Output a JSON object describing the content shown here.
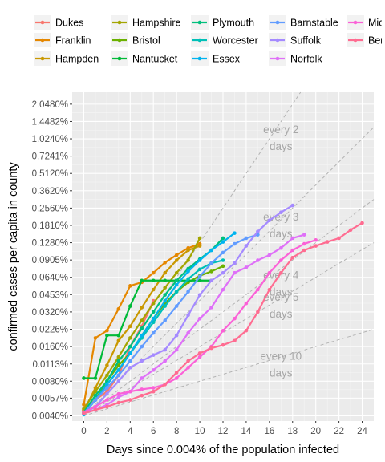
{
  "chart_data": {
    "type": "line",
    "xlabel": "Days since 0.004% of the population infected",
    "ylabel": "confirmed cases per capita in county",
    "y_scale": "log2",
    "xlim": [
      -1,
      25
    ],
    "ylim_percent": [
      0.0036,
      2.6
    ],
    "x_ticks": [
      0,
      2,
      4,
      6,
      8,
      10,
      12,
      14,
      16,
      18,
      20,
      22,
      24
    ],
    "x_tick_labels": [
      "0",
      "2",
      "4",
      "6",
      "8",
      "10",
      "12",
      "14",
      "16",
      "18",
      "20",
      "22",
      "24"
    ],
    "y_ticks": [
      0.004,
      0.0057,
      0.008,
      0.0113,
      0.016,
      0.0226,
      0.032,
      0.0453,
      0.064,
      0.0905,
      0.128,
      0.181,
      0.256,
      0.362,
      0.512,
      0.7241,
      1.024,
      1.4482,
      2.048
    ],
    "y_tick_labels": [
      "0.0040%",
      "0.0057%",
      "0.0080%",
      "0.0113%",
      "0.0160%",
      "0.0226%",
      "0.0320%",
      "0.0453%",
      "0.0640%",
      "0.0905%",
      "0.1280%",
      "0.1810%",
      "0.2560%",
      "0.3620%",
      "0.5120%",
      "0.7241%",
      "1.0240%",
      "1.4482%",
      "2.0480%"
    ],
    "grid": true,
    "legend_position": "top",
    "reference_lines": [
      {
        "label_line1": "every 2",
        "label_line2": "days",
        "doubling_days": 2,
        "label_x": 17,
        "label_y": 1.15
      },
      {
        "label_line1": "every 3",
        "label_line2": "days",
        "doubling_days": 3,
        "label_x": 17,
        "label_y": 0.2
      },
      {
        "label_line1": "every 4",
        "label_line2": "days",
        "doubling_days": 4,
        "label_x": 17,
        "label_y": 0.062
      },
      {
        "label_line1": "every 5",
        "label_line2": "days",
        "doubling_days": 5,
        "label_x": 17,
        "label_y": 0.04
      },
      {
        "label_line1": "every 10",
        "label_line2": "days",
        "doubling_days": 10,
        "label_x": 17,
        "label_y": 0.0123
      }
    ],
    "series": [
      {
        "name": "Dukes",
        "color": "#F8766D",
        "x": [
          0,
          1,
          2,
          3,
          4,
          5,
          6
        ],
        "y": [
          0.0045,
          0.0055,
          0.0065,
          0.009,
          0.016,
          0.024,
          0.04
        ]
      },
      {
        "name": "Franklin",
        "color": "#E58700",
        "x": [
          0,
          1,
          2,
          3,
          4,
          5,
          6,
          7,
          8,
          9,
          10
        ],
        "y": [
          0.005,
          0.019,
          0.022,
          0.034,
          0.054,
          0.058,
          0.07,
          0.086,
          0.1,
          0.115,
          0.125
        ]
      },
      {
        "name": "Hampden",
        "color": "#C99800",
        "x": [
          0,
          1,
          2,
          3,
          4,
          5,
          6,
          7,
          8,
          9,
          10
        ],
        "y": [
          0.0044,
          0.007,
          0.011,
          0.018,
          0.024,
          0.035,
          0.05,
          0.07,
          0.09,
          0.11,
          0.12
        ]
      },
      {
        "name": "Hampshire",
        "color": "#A3A500",
        "x": [
          0,
          1,
          2,
          3,
          4,
          5,
          6,
          7,
          8,
          9,
          10
        ],
        "y": [
          0.0046,
          0.0065,
          0.009,
          0.013,
          0.019,
          0.027,
          0.038,
          0.052,
          0.07,
          0.09,
          0.14
        ]
      },
      {
        "name": "Bristol",
        "color": "#6BB100",
        "x": [
          0,
          1,
          2,
          3,
          4,
          5,
          6,
          7,
          8,
          9,
          10,
          11,
          12
        ],
        "y": [
          0.0042,
          0.0055,
          0.008,
          0.011,
          0.014,
          0.02,
          0.028,
          0.038,
          0.048,
          0.058,
          0.066,
          0.072,
          0.08
        ]
      },
      {
        "name": "Nantucket",
        "color": "#00BA38",
        "x": [
          0,
          1,
          2,
          3,
          4,
          5,
          6,
          7,
          8,
          9,
          10,
          11
        ],
        "y": [
          0.0085,
          0.0085,
          0.02,
          0.02,
          0.036,
          0.06,
          0.06,
          0.06,
          0.06,
          0.06,
          0.06,
          0.06
        ]
      },
      {
        "name": "Plymouth",
        "color": "#00BF7D",
        "x": [
          0,
          1,
          2,
          3,
          4,
          5,
          6,
          7,
          8,
          9,
          10,
          11,
          12
        ],
        "y": [
          0.0043,
          0.006,
          0.008,
          0.012,
          0.016,
          0.023,
          0.032,
          0.045,
          0.06,
          0.076,
          0.092,
          0.11,
          0.14
        ]
      },
      {
        "name": "Worcester",
        "color": "#00C0B8",
        "x": [
          0,
          1,
          2,
          3,
          4,
          5,
          6,
          7,
          8,
          9,
          10,
          11,
          12
        ],
        "y": [
          0.0042,
          0.0055,
          0.0075,
          0.01,
          0.014,
          0.019,
          0.026,
          0.036,
          0.048,
          0.062,
          0.075,
          0.085,
          0.09
        ]
      },
      {
        "name": "Essex",
        "color": "#00B4EF",
        "x": [
          0,
          1,
          2,
          3,
          4,
          5,
          6,
          7,
          8,
          9,
          10,
          11,
          12,
          13
        ],
        "y": [
          0.0041,
          0.0055,
          0.0075,
          0.01,
          0.014,
          0.02,
          0.028,
          0.04,
          0.055,
          0.072,
          0.09,
          0.11,
          0.13,
          0.155
        ]
      },
      {
        "name": "Barnstable",
        "color": "#619CFF",
        "x": [
          0,
          1,
          2,
          3,
          4,
          5,
          6,
          7,
          8,
          9,
          10,
          11,
          12,
          13,
          14,
          15
        ],
        "y": [
          0.0042,
          0.0055,
          0.007,
          0.009,
          0.012,
          0.016,
          0.021,
          0.027,
          0.036,
          0.048,
          0.065,
          0.085,
          0.105,
          0.125,
          0.14,
          0.15
        ]
      },
      {
        "name": "Suffolk",
        "color": "#A58AFF",
        "x": [
          0,
          1,
          2,
          3,
          4,
          5,
          6,
          7,
          8,
          9,
          10,
          11,
          12,
          13,
          14,
          15,
          16,
          17,
          18
        ],
        "y": [
          0.0042,
          0.0048,
          0.0062,
          0.008,
          0.0105,
          0.012,
          0.0135,
          0.015,
          0.02,
          0.03,
          0.045,
          0.06,
          0.07,
          0.085,
          0.12,
          0.16,
          0.2,
          0.235,
          0.27
        ]
      },
      {
        "name": "Norfolk",
        "color": "#DF70F8",
        "x": [
          0,
          1,
          2,
          3,
          4,
          5,
          6,
          7,
          8,
          9,
          10,
          11,
          12,
          13,
          14,
          15,
          16,
          17,
          18,
          19
        ],
        "y": [
          0.0042,
          0.0045,
          0.005,
          0.0058,
          0.0065,
          0.0085,
          0.01,
          0.012,
          0.015,
          0.021,
          0.028,
          0.035,
          0.05,
          0.07,
          0.078,
          0.09,
          0.1,
          0.115,
          0.14,
          0.15
        ]
      },
      {
        "name": "Middlesex",
        "color": "#FB61D7",
        "x": [
          0,
          1,
          2,
          3,
          4,
          5,
          6,
          7,
          8,
          9,
          10,
          11,
          12,
          13,
          14,
          15,
          16,
          17,
          18,
          19,
          20
        ],
        "y": [
          0.0043,
          0.0048,
          0.0055,
          0.0062,
          0.0065,
          0.0068,
          0.007,
          0.0075,
          0.0085,
          0.0105,
          0.013,
          0.016,
          0.022,
          0.028,
          0.038,
          0.05,
          0.07,
          0.09,
          0.11,
          0.125,
          0.135
        ]
      },
      {
        "name": "Berkshire",
        "color": "#FF6C91",
        "x": [
          0,
          1,
          2,
          3,
          4,
          5,
          6,
          7,
          8,
          9,
          10,
          11,
          12,
          13,
          14,
          15,
          16,
          17,
          18,
          19,
          20,
          21,
          22,
          23,
          24
        ],
        "y": [
          0.0042,
          0.0045,
          0.0048,
          0.0052,
          0.0055,
          0.006,
          0.0065,
          0.0075,
          0.0095,
          0.012,
          0.014,
          0.0155,
          0.0165,
          0.018,
          0.022,
          0.032,
          0.05,
          0.07,
          0.095,
          0.11,
          0.12,
          0.13,
          0.14,
          0.165,
          0.19
        ]
      }
    ]
  }
}
